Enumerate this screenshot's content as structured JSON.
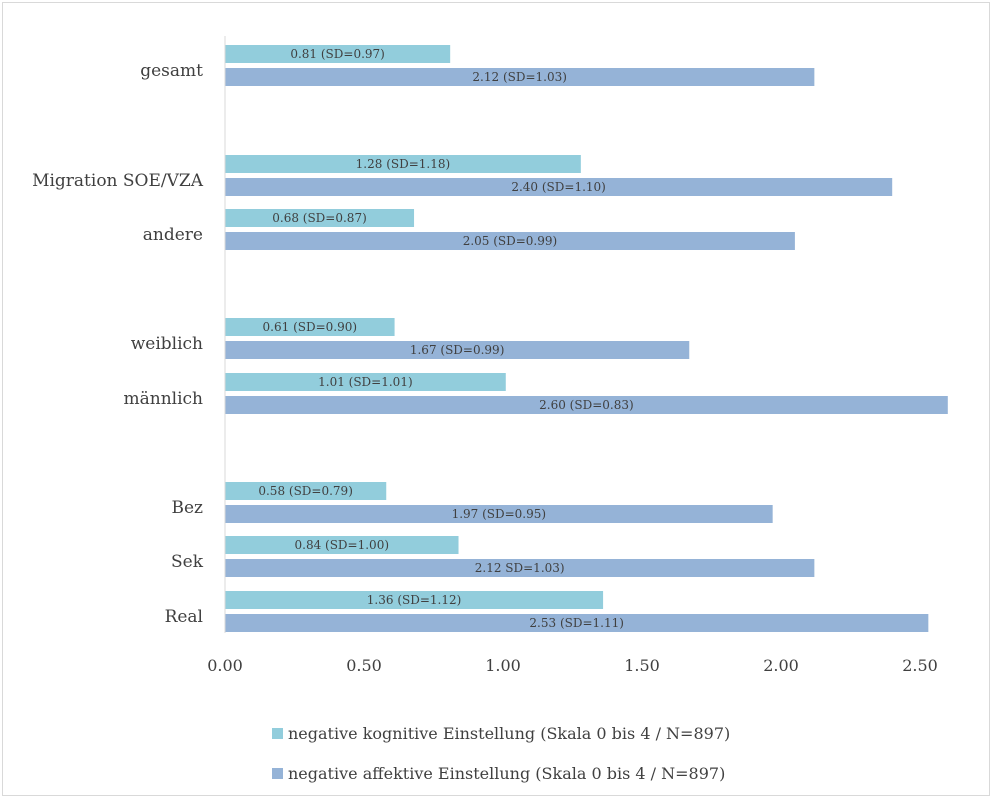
{
  "chart_data": {
    "type": "bar",
    "orientation": "horizontal",
    "title": "",
    "xlabel": "",
    "ylabel": "",
    "xlim": [
      0,
      2.6
    ],
    "x_ticks": [
      "0.00",
      "0.50",
      "1.00",
      "1.50",
      "2.00",
      "2.50"
    ],
    "grid": false,
    "legend_position": "bottom",
    "categories": [
      "gesamt",
      "Migration SOE/VZA",
      "andere",
      "weiblich",
      "männlich",
      "Bez",
      "Sek",
      "Real"
    ],
    "series": [
      {
        "name": "negative kognitive Einstellung (Skala 0 bis 4 / N=897)",
        "color": "#92cddc",
        "values": [
          0.81,
          1.28,
          0.68,
          0.61,
          1.01,
          0.58,
          0.84,
          1.36
        ],
        "labels": [
          "0.81 (SD=0.97)",
          "1.28 (SD=1.18)",
          "0.68 (SD=0.87)",
          "0.61 (SD=0.90)",
          "1.01 (SD=1.01)",
          "0.58 (SD=0.79)",
          "0.84 (SD=1.00)",
          "1.36 (SD=1.12)"
        ]
      },
      {
        "name": "negative affektive Einstellung (Skala 0 bis 4 / N=897)",
        "color": "#95b3d7",
        "values": [
          2.12,
          2.4,
          2.05,
          1.67,
          2.6,
          1.97,
          2.12,
          2.53
        ],
        "labels": [
          "2.12 (SD=1.03)",
          "2.40 (SD=1.10)",
          "2.05 (SD=0.99)",
          "1.67 (SD=0.99)",
          "2.60 (SD=0.83)",
          "1.97 (SD=0.95)",
          "2.12 SD=1.03)",
          "2.53 (SD=1.11)"
        ]
      }
    ]
  }
}
